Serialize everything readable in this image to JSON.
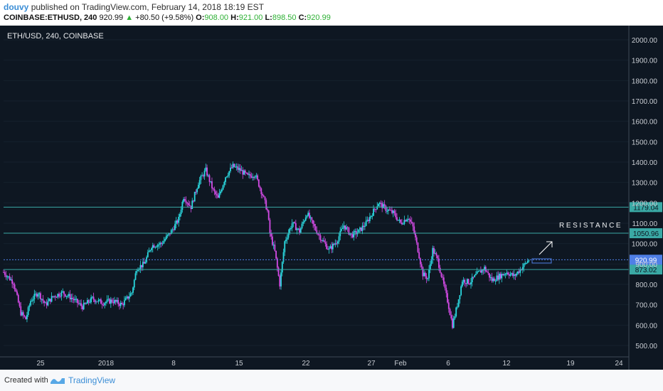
{
  "header": {
    "author": "douvy",
    "published_text": "published on TradingView.com, February 14, 2018 18:19 EST",
    "symbol": "COINBASE:ETHUSD, 240",
    "price": "920.99",
    "change_arrow": "▲",
    "change": "+80.50 (+9.58%)",
    "open_label": "O:",
    "open": "908.00",
    "high_label": "H:",
    "high": "921.00",
    "low_label": "L:",
    "low": "898.50",
    "close_label": "C:",
    "close": "920.99"
  },
  "chart_title": "ETH/USD, 240, COINBASE",
  "annotation": "RESISTANCE",
  "footer": {
    "created_with": "Created with",
    "brand": "TradingView"
  },
  "colors": {
    "background": "#0e1722",
    "up_candle": "#2bd9e0",
    "down_candle": "#d44be6",
    "level_line": "#3aa9a5",
    "price_line": "#4f7fe6",
    "axis_text": "#c8ccd2"
  },
  "chart_data": {
    "type": "candlestick",
    "title": "ETH/USD, 240, COINBASE",
    "ylim": [
      450,
      2050
    ],
    "y_ticks": [
      "2000.00",
      "1900.00",
      "1800.00",
      "1700.00",
      "1600.00",
      "1500.00",
      "1400.00",
      "1300.00",
      "1200.00",
      "1100.00",
      "1000.00",
      "900.00",
      "800.00",
      "700.00",
      "600.00",
      "500.00"
    ],
    "x_ticks": [
      "25",
      "2018",
      "8",
      "15",
      "22",
      "27",
      "Feb",
      "6",
      "12",
      "19",
      "24"
    ],
    "levels": [
      {
        "value": 1179.04,
        "label": "1179.04"
      },
      {
        "value": 1050.96,
        "label": "1050.96"
      },
      {
        "value": 873.02,
        "label": "873.02"
      }
    ],
    "last_price": {
      "value": 920.99,
      "label": "920.99"
    },
    "path": [
      {
        "x": 0,
        "y": 860
      },
      {
        "x": 4,
        "y": 810
      },
      {
        "x": 7,
        "y": 660
      },
      {
        "x": 9,
        "y": 630
      },
      {
        "x": 11,
        "y": 720
      },
      {
        "x": 14,
        "y": 760
      },
      {
        "x": 17,
        "y": 700
      },
      {
        "x": 20,
        "y": 740
      },
      {
        "x": 24,
        "y": 760
      },
      {
        "x": 28,
        "y": 730
      },
      {
        "x": 32,
        "y": 690
      },
      {
        "x": 36,
        "y": 730
      },
      {
        "x": 40,
        "y": 710
      },
      {
        "x": 44,
        "y": 720
      },
      {
        "x": 48,
        "y": 700
      },
      {
        "x": 52,
        "y": 760
      },
      {
        "x": 54,
        "y": 880
      },
      {
        "x": 57,
        "y": 900
      },
      {
        "x": 60,
        "y": 990
      },
      {
        "x": 64,
        "y": 1000
      },
      {
        "x": 68,
        "y": 1060
      },
      {
        "x": 71,
        "y": 1120
      },
      {
        "x": 73,
        "y": 1230
      },
      {
        "x": 76,
        "y": 1180
      },
      {
        "x": 79,
        "y": 1300
      },
      {
        "x": 82,
        "y": 1360
      },
      {
        "x": 85,
        "y": 1260
      },
      {
        "x": 87,
        "y": 1220
      },
      {
        "x": 90,
        "y": 1330
      },
      {
        "x": 93,
        "y": 1380
      },
      {
        "x": 96,
        "y": 1360
      },
      {
        "x": 99,
        "y": 1330
      },
      {
        "x": 102,
        "y": 1340
      },
      {
        "x": 105,
        "y": 1240
      },
      {
        "x": 107,
        "y": 1160
      },
      {
        "x": 108,
        "y": 1050
      },
      {
        "x": 110,
        "y": 960
      },
      {
        "x": 112,
        "y": 800
      },
      {
        "x": 114,
        "y": 1010
      },
      {
        "x": 117,
        "y": 1100
      },
      {
        "x": 120,
        "y": 1060
      },
      {
        "x": 123,
        "y": 1150
      },
      {
        "x": 126,
        "y": 1080
      },
      {
        "x": 129,
        "y": 1020
      },
      {
        "x": 132,
        "y": 970
      },
      {
        "x": 135,
        "y": 1010
      },
      {
        "x": 138,
        "y": 1090
      },
      {
        "x": 141,
        "y": 1040
      },
      {
        "x": 144,
        "y": 1060
      },
      {
        "x": 147,
        "y": 1100
      },
      {
        "x": 150,
        "y": 1160
      },
      {
        "x": 152,
        "y": 1200
      },
      {
        "x": 155,
        "y": 1170
      },
      {
        "x": 158,
        "y": 1150
      },
      {
        "x": 161,
        "y": 1100
      },
      {
        "x": 164,
        "y": 1130
      },
      {
        "x": 166,
        "y": 1080
      },
      {
        "x": 168,
        "y": 970
      },
      {
        "x": 170,
        "y": 850
      },
      {
        "x": 172,
        "y": 830
      },
      {
        "x": 174,
        "y": 970
      },
      {
        "x": 176,
        "y": 920
      },
      {
        "x": 178,
        "y": 820
      },
      {
        "x": 180,
        "y": 720
      },
      {
        "x": 182,
        "y": 600
      },
      {
        "x": 184,
        "y": 700
      },
      {
        "x": 186,
        "y": 820
      },
      {
        "x": 189,
        "y": 810
      },
      {
        "x": 192,
        "y": 850
      },
      {
        "x": 195,
        "y": 880
      },
      {
        "x": 198,
        "y": 820
      },
      {
        "x": 201,
        "y": 840
      },
      {
        "x": 204,
        "y": 860
      },
      {
        "x": 207,
        "y": 840
      },
      {
        "x": 210,
        "y": 880
      },
      {
        "x": 213,
        "y": 921
      }
    ]
  }
}
